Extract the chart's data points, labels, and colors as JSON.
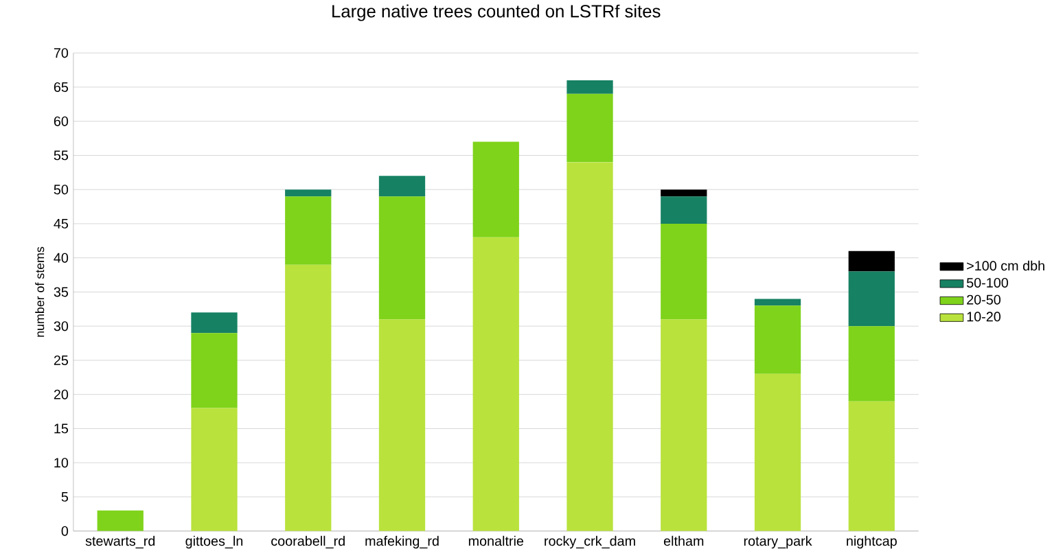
{
  "chart_data": {
    "type": "bar",
    "title": "Large native trees counted on LSTRf sites",
    "ylabel": "number of stems",
    "stacked": true,
    "categories": [
      "stewarts_rd",
      "gittoes_ln",
      "coorabell_rd",
      "mafeking_rd",
      "monaltrie",
      "rocky_crk_dam",
      "eltham",
      "rotary_park",
      "nightcap"
    ],
    "series": [
      {
        "name": "10-20",
        "color": "#b9e23c",
        "values": [
          0,
          18,
          39,
          31,
          43,
          54,
          31,
          23,
          19
        ]
      },
      {
        "name": "20-50",
        "color": "#7fd31b",
        "values": [
          3,
          11,
          10,
          18,
          14,
          10,
          14,
          10,
          11
        ]
      },
      {
        "name": "50-100",
        "color": "#168163",
        "values": [
          0,
          3,
          1,
          3,
          0,
          2,
          4,
          1,
          8
        ]
      },
      {
        "name": ">100 cm dbh",
        "color": "#000000",
        "values": [
          0,
          0,
          0,
          0,
          0,
          0,
          1,
          0,
          3
        ]
      }
    ],
    "ylim": [
      0,
      70
    ],
    "yticks": [
      0,
      5,
      10,
      15,
      20,
      25,
      30,
      35,
      40,
      45,
      50,
      55,
      60,
      65,
      70
    ],
    "grid": "y",
    "legend": "right"
  }
}
